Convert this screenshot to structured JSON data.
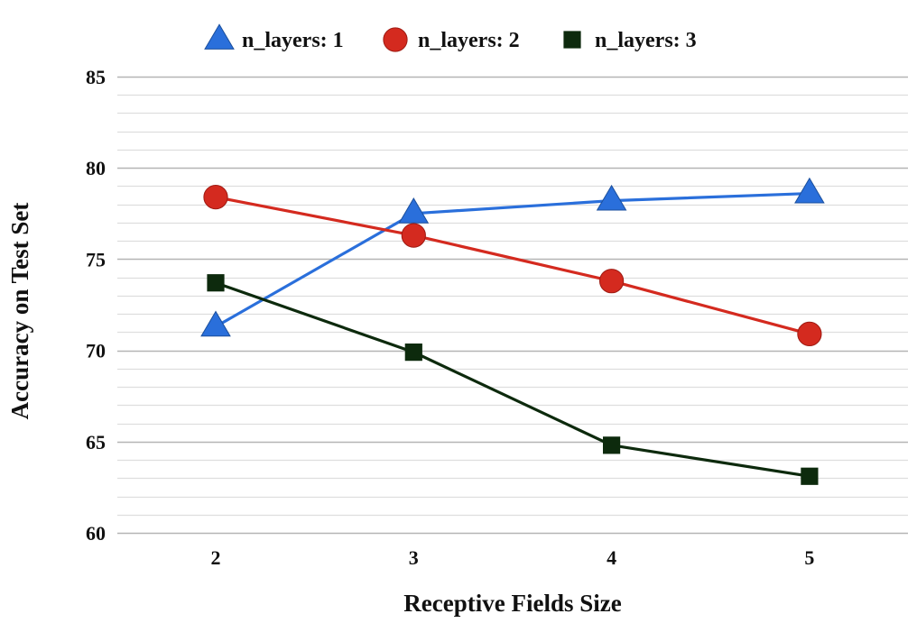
{
  "chart_data": {
    "type": "line",
    "title": "",
    "xlabel": "Receptive Fields Size",
    "ylabel": "Accuracy on Test Set",
    "x": [
      2,
      3,
      4,
      5
    ],
    "xticks": [
      "2",
      "3",
      "4",
      "5"
    ],
    "ylim": [
      60,
      85
    ],
    "yticks": [
      "60",
      "65",
      "70",
      "75",
      "80",
      "85"
    ],
    "grid": true,
    "legend_position": "top-center",
    "series": [
      {
        "name": "n_layers: 1",
        "marker": "triangle",
        "color": "#2a6fdb",
        "values": [
          71.3,
          77.5,
          78.2,
          78.6
        ]
      },
      {
        "name": "n_layers: 2",
        "marker": "circle",
        "color": "#d42a1f",
        "values": [
          78.4,
          76.3,
          73.8,
          70.9
        ]
      },
      {
        "name": "n_layers: 3",
        "marker": "square",
        "color": "#0d2a0d",
        "values": [
          73.7,
          69.9,
          64.8,
          63.1
        ]
      }
    ]
  }
}
